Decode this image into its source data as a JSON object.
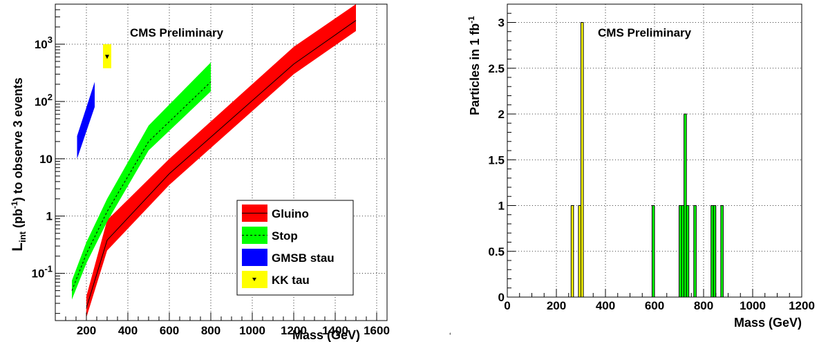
{
  "chart_data": [
    {
      "type": "area",
      "annotation": "CMS Preliminary",
      "xlabel": "Mass (GeV)",
      "ylabel": {
        "main": "L",
        "sub": "int",
        "rest": " (pb",
        "sup": "-1",
        "tail": ") to observe 3 events"
      },
      "xlim": [
        50,
        1650
      ],
      "ylim": [
        0.015,
        5000
      ],
      "yscale": "log",
      "xticks": [
        200,
        400,
        600,
        800,
        1000,
        1200,
        1400,
        1600
      ],
      "xtick_labels": [
        "200",
        "400",
        "600",
        "800",
        "1000",
        "1200",
        "1400",
        "1600"
      ],
      "yticks": [
        {
          "value": 0.1,
          "base": "10",
          "exp": "-1"
        },
        {
          "value": 1,
          "base": "1",
          "exp": ""
        },
        {
          "value": 10,
          "base": "10",
          "exp": ""
        },
        {
          "value": 100,
          "base": "10",
          "exp": "2"
        },
        {
          "value": 1000,
          "base": "10",
          "exp": "3"
        }
      ],
      "grid": true,
      "legend_position": "bottom-right",
      "series": [
        {
          "name": "Gluino",
          "color": "#ff0000",
          "line": "solid",
          "x": [
            200,
            300,
            600,
            1200,
            1500
          ],
          "y": [
            0.025,
            0.38,
            5.5,
            450,
            2600
          ],
          "y_low": [
            0.017,
            0.25,
            3.5,
            300,
            1700
          ],
          "y_high": [
            0.04,
            0.85,
            10,
            900,
            5000
          ]
        },
        {
          "name": "Stop",
          "color": "#00ff00",
          "line": "dashed",
          "x": [
            130,
            200,
            300,
            500,
            800
          ],
          "y": [
            0.05,
            0.22,
            1.2,
            20,
            220
          ],
          "y_low": [
            0.035,
            0.15,
            0.8,
            14,
            150
          ],
          "y_high": [
            0.075,
            0.35,
            2.0,
            38,
            480
          ]
        },
        {
          "name": "GMSB stau",
          "color": "#0000ff",
          "line": "none",
          "x": [
            155,
            240
          ],
          "y_low": [
            10,
            80
          ],
          "y_high": [
            25,
            220
          ]
        },
        {
          "name": "KK tau",
          "color": "#ffff00",
          "line": "none",
          "marker": "triangle-down",
          "x": [
            280,
            320
          ],
          "y_point": 600,
          "y_low": [
            380,
            380
          ],
          "y_high": [
            1000,
            1000
          ]
        }
      ]
    },
    {
      "type": "bar",
      "annotation": "CMS Preliminary",
      "xlabel": "Mass (GeV)",
      "ylabel": {
        "main": "Particles in 1 fb",
        "sup": "-1"
      },
      "xlim": [
        0,
        1200
      ],
      "ylim": [
        0,
        3.2
      ],
      "xticks": [
        0,
        200,
        400,
        600,
        800,
        1000,
        1200
      ],
      "xtick_labels": [
        "0",
        "200",
        "400",
        "600",
        "800",
        "1000",
        "1200"
      ],
      "yticks": [
        0,
        0.5,
        1,
        1.5,
        2,
        2.5,
        3
      ],
      "ytick_labels": [
        "0",
        "0.5",
        "1",
        "1.5",
        "2",
        "2.5",
        "3"
      ],
      "grid": true,
      "bin_width": 10,
      "series": [
        {
          "color": "#ffff00",
          "x": [
            260,
            280,
            290,
            300
          ],
          "values": [
            1,
            0,
            1,
            3
          ]
        },
        {
          "color": "#00ff00",
          "x": [
            590,
            700,
            710,
            720,
            730,
            760,
            830,
            840,
            870
          ],
          "values": [
            1,
            1,
            1,
            2,
            1,
            1,
            1,
            1,
            1
          ]
        }
      ]
    }
  ],
  "stray_mark": "‘"
}
